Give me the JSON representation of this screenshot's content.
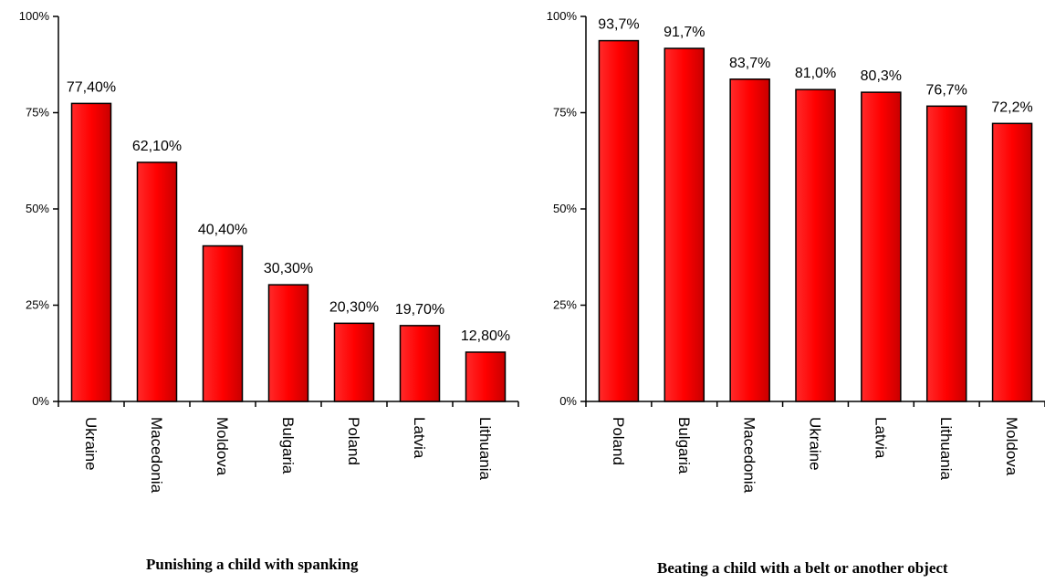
{
  "chart_data": [
    {
      "type": "bar",
      "title": "Punishing a child with spanking",
      "categories": [
        "Ukraine",
        "Macedonia",
        "Moldova",
        "Bulgaria",
        "Poland",
        "Latvia",
        "Lithuania"
      ],
      "values": [
        77.4,
        62.1,
        40.4,
        30.3,
        20.3,
        19.7,
        12.8
      ],
      "data_labels": [
        "77,40%",
        "62,10%",
        "40,40%",
        "30,30%",
        "20,30%",
        "19,70%",
        "12,80%"
      ],
      "ylim": [
        0,
        100
      ],
      "yticks": [
        0,
        25,
        50,
        75,
        100
      ],
      "ytick_labels": [
        "0%",
        "25%",
        "50%",
        "75%",
        "100%"
      ],
      "bar_color": "#e8000b",
      "grid": false
    },
    {
      "type": "bar",
      "title": "Beating a child with a belt or another object",
      "categories": [
        "Poland",
        "Bulgaria",
        "Macedonia",
        "Ukraine",
        "Latvia",
        "Lithuania",
        "Moldova"
      ],
      "values": [
        93.7,
        91.7,
        83.7,
        81.0,
        80.3,
        76.7,
        72.2
      ],
      "data_labels": [
        "93,7%",
        "91,7%",
        "83,7%",
        "81,0%",
        "80,3%",
        "76,7%",
        "72,2%"
      ],
      "ylim": [
        0,
        100
      ],
      "yticks": [
        0,
        25,
        50,
        75,
        100
      ],
      "ytick_labels": [
        "0%",
        "25%",
        "50%",
        "75%",
        "100%"
      ],
      "bar_color": "#e8000b",
      "grid": false
    }
  ]
}
